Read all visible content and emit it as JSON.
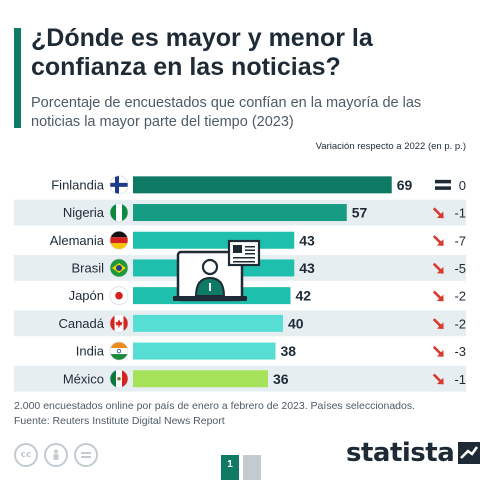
{
  "title": "¿Dónde es mayor y menor la confianza en las noticias?",
  "subtitle": "Porcentaje de encuestados que confían en la mayoría de las noticias la mayor parte del tiempo (2023)",
  "variation_header": "Variación respecto a 2022 (en p. p.)",
  "footer": {
    "note": "2.000 encuestados online por país de enero a febrero de 2023. Países seleccionados.",
    "source": "Fuente: Reuters Institute Digital News Report"
  },
  "brand": "statista",
  "page": {
    "current": "1"
  },
  "license_icons": [
    "cc-icon",
    "person-icon",
    "equals-icon"
  ],
  "colors": {
    "dark_green": "#0e7a64",
    "teal": "#1fbfae",
    "light_teal": "#56ddd4",
    "lime": "#a6e35a",
    "down_arrow": "#d93a2e",
    "text": "#1e2b36"
  },
  "chart_data": {
    "type": "bar",
    "orientation": "horizontal",
    "categories": [
      "Finlandia",
      "Nigeria",
      "Alemania",
      "Brasil",
      "Japón",
      "Canadá",
      "India",
      "México"
    ],
    "values": [
      69,
      57,
      43,
      43,
      42,
      40,
      38,
      36
    ],
    "variation": [
      "0",
      "-1",
      "-7",
      "-5",
      "-2",
      "-2",
      "-3",
      "-1"
    ],
    "variation_direction": [
      "equal",
      "down",
      "down",
      "down",
      "down",
      "down",
      "down",
      "down"
    ],
    "bar_colors": [
      "#0e7a64",
      "#159c83",
      "#1fbfae",
      "#1fbfae",
      "#1fbfae",
      "#56ddd4",
      "#56ddd4",
      "#a6e35a"
    ],
    "flags": [
      "finland",
      "nigeria",
      "germany",
      "brazil",
      "japan",
      "canada",
      "india",
      "mexico"
    ],
    "xlim": [
      0,
      100
    ],
    "grid": false,
    "legend": "none"
  }
}
